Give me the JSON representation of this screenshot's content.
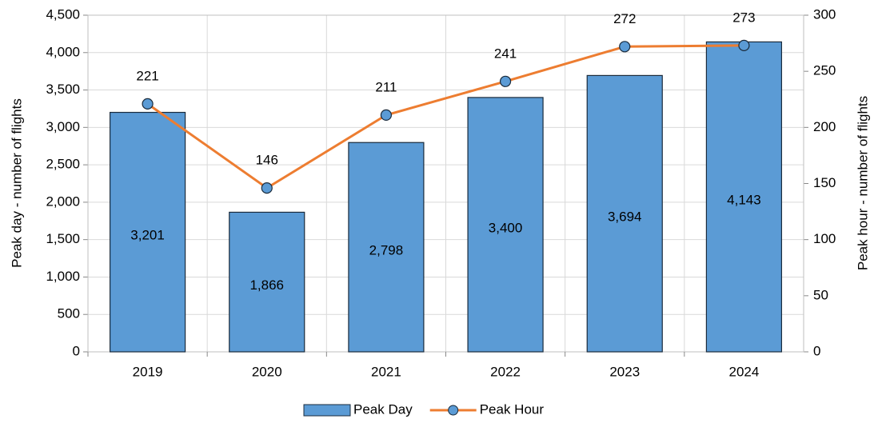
{
  "chart_data": {
    "type": "combo",
    "categories": [
      "2019",
      "2020",
      "2021",
      "2022",
      "2023",
      "2024"
    ],
    "series": [
      {
        "name": "Peak Day",
        "type": "bar",
        "color": "#5b9bd5",
        "axis": "y",
        "values": [
          3201,
          1866,
          2798,
          3400,
          3694,
          4143
        ],
        "value_labels": [
          "3,201",
          "1,866",
          "2,798",
          "3,400",
          "3,694",
          "4,143"
        ]
      },
      {
        "name": "Peak Hour",
        "type": "line",
        "color": "#ed7d31",
        "marker_color": "#5b9bd5",
        "axis": "y2",
        "values": [
          221,
          146,
          211,
          241,
          272,
          273
        ]
      }
    ],
    "ylabel": "Peak day - number of flights",
    "y2label": "Peak hour - number of flights",
    "ylim": [
      0,
      4500
    ],
    "yticks": [
      0,
      500,
      {
        "value": 1000,
        "label": "1,000"
      },
      {
        "value": 1500,
        "label": "1,500"
      },
      {
        "value": 2000,
        "label": "2,000"
      },
      {
        "value": 2500,
        "label": "2,500"
      },
      {
        "value": 3000,
        "label": "3,000"
      },
      {
        "value": 3500,
        "label": "3,500"
      },
      {
        "value": 4000,
        "label": "4,000"
      },
      {
        "value": 4500,
        "label": "4,500"
      }
    ],
    "y2lim": [
      0,
      300
    ],
    "y2ticks": [
      0,
      50,
      100,
      150,
      200,
      250,
      300
    ],
    "grid": true,
    "legend": "bottom"
  }
}
